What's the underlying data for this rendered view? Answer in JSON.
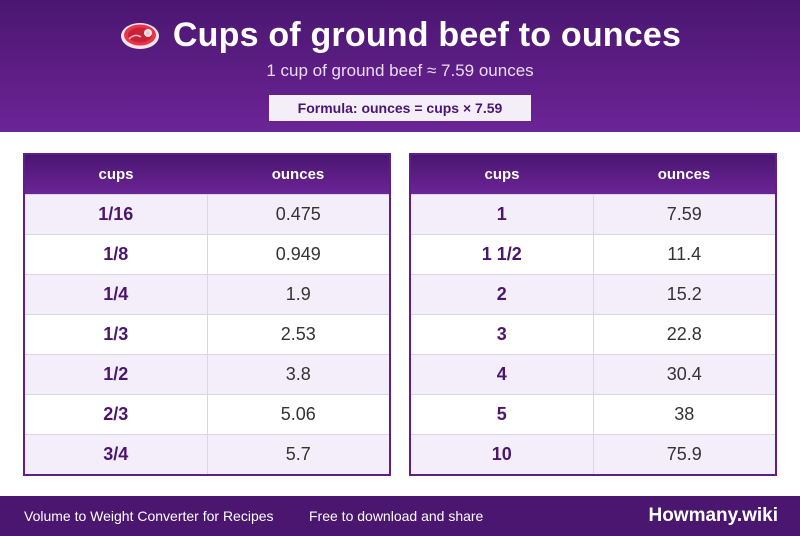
{
  "header": {
    "title": "Cups of ground beef to ounces",
    "subtitle": "1 cup of ground beef ≈ 7.59 ounces",
    "formula": "Formula: ounces = cups × 7.59",
    "icon": "steak-icon"
  },
  "tables": [
    {
      "col_cups": "cups",
      "col_ounces": "ounces",
      "rows": [
        {
          "cups": "1/16",
          "ounces": "0.475"
        },
        {
          "cups": "1/8",
          "ounces": "0.949"
        },
        {
          "cups": "1/4",
          "ounces": "1.9"
        },
        {
          "cups": "1/3",
          "ounces": "2.53"
        },
        {
          "cups": "1/2",
          "ounces": "3.8"
        },
        {
          "cups": "2/3",
          "ounces": "5.06"
        },
        {
          "cups": "3/4",
          "ounces": "5.7"
        }
      ]
    },
    {
      "col_cups": "cups",
      "col_ounces": "ounces",
      "rows": [
        {
          "cups": "1",
          "ounces": "7.59"
        },
        {
          "cups": "1 1/2",
          "ounces": "11.4"
        },
        {
          "cups": "2",
          "ounces": "15.2"
        },
        {
          "cups": "3",
          "ounces": "22.8"
        },
        {
          "cups": "4",
          "ounces": "30.4"
        },
        {
          "cups": "5",
          "ounces": "38"
        },
        {
          "cups": "10",
          "ounces": "75.9"
        }
      ]
    }
  ],
  "footer": {
    "left": "Volume to Weight Converter for Recipes",
    "middle": "Free to download and share",
    "brand": "Howmany.wiki"
  },
  "colors": {
    "primary": "#4a1670",
    "accent": "#6c2496",
    "row_alt": "#f3eef9"
  }
}
